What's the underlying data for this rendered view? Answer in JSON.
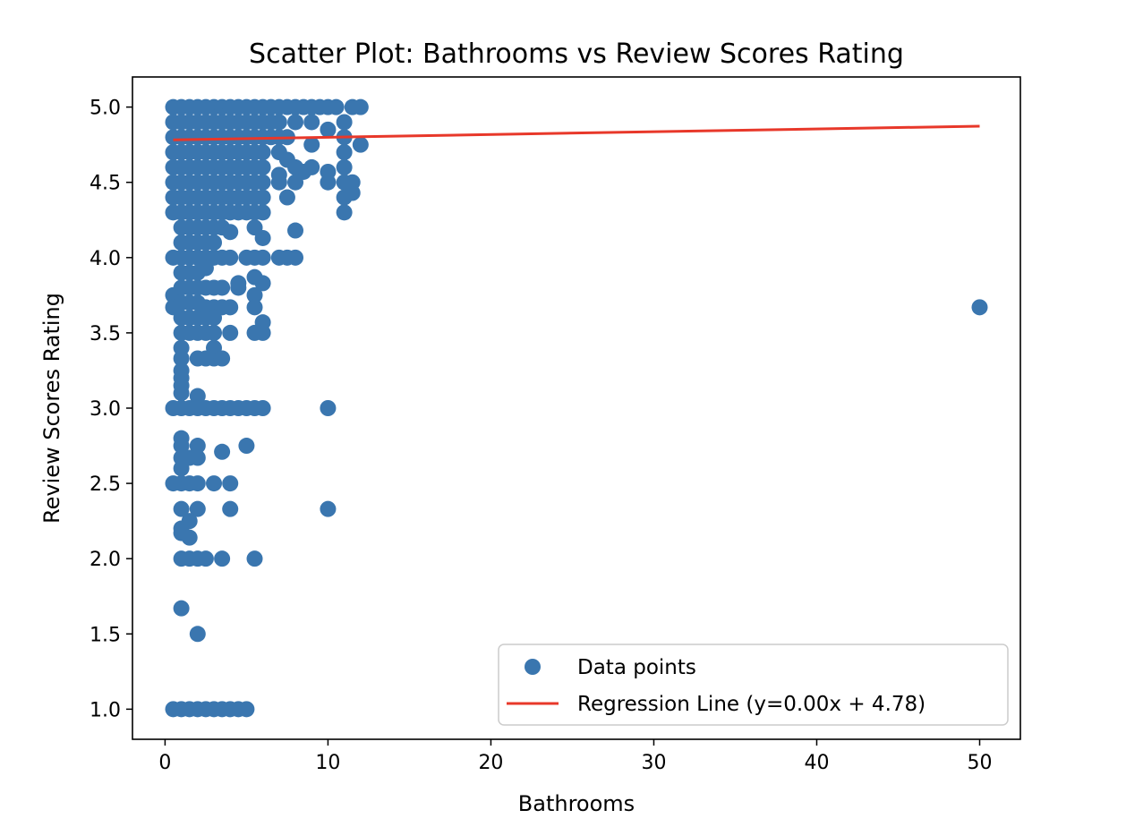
{
  "chart_data": {
    "type": "scatter",
    "title": "Scatter Plot: Bathrooms vs Review Scores Rating",
    "xlabel": "Bathrooms",
    "ylabel": "Review Scores Rating",
    "xlim": [
      -2,
      52.5
    ],
    "ylim": [
      0.8,
      5.2
    ],
    "x_ticks": [
      0,
      10,
      20,
      30,
      40,
      50
    ],
    "x_tick_labels": [
      "0",
      "10",
      "20",
      "30",
      "40",
      "50"
    ],
    "y_ticks": [
      1.0,
      1.5,
      2.0,
      2.5,
      3.0,
      3.5,
      4.0,
      4.5,
      5.0
    ],
    "y_tick_labels": [
      "1.0",
      "1.5",
      "2.0",
      "2.5",
      "3.0",
      "3.5",
      "4.0",
      "4.5",
      "5.0"
    ],
    "grid": false,
    "legend": {
      "placement": "lower-right",
      "entries": [
        "Data points",
        "Regression Line (y=0.00x + 4.78)"
      ]
    },
    "colors": {
      "points": "#3a76af",
      "regression": "#e8382a"
    },
    "series": [
      {
        "name": "Data points",
        "kind": "scatter",
        "points": [
          [
            0.5,
            5.0
          ],
          [
            1,
            5.0
          ],
          [
            1.5,
            5.0
          ],
          [
            2,
            5.0
          ],
          [
            2.5,
            5.0
          ],
          [
            3,
            5.0
          ],
          [
            3.5,
            5.0
          ],
          [
            4,
            5.0
          ],
          [
            4.5,
            5.0
          ],
          [
            5,
            5.0
          ],
          [
            5.5,
            5.0
          ],
          [
            6,
            5.0
          ],
          [
            6.5,
            5.0
          ],
          [
            7,
            5.0
          ],
          [
            7.5,
            5.0
          ],
          [
            8,
            5.0
          ],
          [
            8.5,
            5.0
          ],
          [
            9,
            5.0
          ],
          [
            9.5,
            5.0
          ],
          [
            10,
            5.0
          ],
          [
            10.5,
            5.0
          ],
          [
            11.5,
            5.0
          ],
          [
            12,
            5.0
          ],
          [
            0.5,
            4.9
          ],
          [
            1,
            4.9
          ],
          [
            1.5,
            4.9
          ],
          [
            2,
            4.9
          ],
          [
            2.5,
            4.9
          ],
          [
            3,
            4.9
          ],
          [
            3.5,
            4.9
          ],
          [
            4,
            4.9
          ],
          [
            4.5,
            4.9
          ],
          [
            5,
            4.9
          ],
          [
            5.5,
            4.9
          ],
          [
            6,
            4.9
          ],
          [
            6.5,
            4.9
          ],
          [
            7,
            4.9
          ],
          [
            8,
            4.9
          ],
          [
            9,
            4.9
          ],
          [
            10,
            4.85
          ],
          [
            11,
            4.9
          ],
          [
            0.5,
            4.8
          ],
          [
            1,
            4.8
          ],
          [
            1.5,
            4.8
          ],
          [
            2,
            4.8
          ],
          [
            2.5,
            4.8
          ],
          [
            3,
            4.8
          ],
          [
            3.5,
            4.8
          ],
          [
            4,
            4.8
          ],
          [
            4.5,
            4.8
          ],
          [
            5,
            4.8
          ],
          [
            5.5,
            4.8
          ],
          [
            6,
            4.8
          ],
          [
            6.5,
            4.8
          ],
          [
            7,
            4.8
          ],
          [
            7.5,
            4.8
          ],
          [
            11,
            4.8
          ],
          [
            12,
            4.75
          ],
          [
            0.5,
            4.7
          ],
          [
            1,
            4.7
          ],
          [
            1.5,
            4.7
          ],
          [
            2,
            4.7
          ],
          [
            2.5,
            4.7
          ],
          [
            3,
            4.7
          ],
          [
            3.5,
            4.7
          ],
          [
            4,
            4.7
          ],
          [
            4.5,
            4.7
          ],
          [
            5,
            4.7
          ],
          [
            5.5,
            4.7
          ],
          [
            6,
            4.7
          ],
          [
            7,
            4.7
          ],
          [
            7.5,
            4.65
          ],
          [
            9,
            4.75
          ],
          [
            11,
            4.7
          ],
          [
            0.5,
            4.6
          ],
          [
            1,
            4.6
          ],
          [
            1.5,
            4.6
          ],
          [
            2,
            4.6
          ],
          [
            2.5,
            4.6
          ],
          [
            3,
            4.6
          ],
          [
            3.5,
            4.6
          ],
          [
            4,
            4.6
          ],
          [
            4.5,
            4.6
          ],
          [
            5,
            4.6
          ],
          [
            5.5,
            4.6
          ],
          [
            6,
            4.6
          ],
          [
            7,
            4.55
          ],
          [
            8,
            4.6
          ],
          [
            8.5,
            4.57
          ],
          [
            9,
            4.6
          ],
          [
            10,
            4.57
          ],
          [
            11,
            4.6
          ],
          [
            0.5,
            4.5
          ],
          [
            1,
            4.5
          ],
          [
            1.5,
            4.5
          ],
          [
            2,
            4.5
          ],
          [
            2.5,
            4.5
          ],
          [
            3,
            4.5
          ],
          [
            3.5,
            4.5
          ],
          [
            4,
            4.5
          ],
          [
            4.5,
            4.5
          ],
          [
            5,
            4.5
          ],
          [
            5.5,
            4.5
          ],
          [
            6,
            4.5
          ],
          [
            7,
            4.5
          ],
          [
            8,
            4.5
          ],
          [
            10,
            4.5
          ],
          [
            11,
            4.5
          ],
          [
            11.5,
            4.5
          ],
          [
            0.5,
            4.4
          ],
          [
            1,
            4.4
          ],
          [
            1.5,
            4.4
          ],
          [
            2,
            4.4
          ],
          [
            2.5,
            4.4
          ],
          [
            3,
            4.4
          ],
          [
            3.5,
            4.4
          ],
          [
            4,
            4.4
          ],
          [
            4.5,
            4.4
          ],
          [
            5,
            4.4
          ],
          [
            5.5,
            4.4
          ],
          [
            6,
            4.4
          ],
          [
            7.5,
            4.4
          ],
          [
            11,
            4.4
          ],
          [
            11.5,
            4.43
          ],
          [
            0.5,
            4.3
          ],
          [
            1,
            4.3
          ],
          [
            1.5,
            4.3
          ],
          [
            2,
            4.3
          ],
          [
            2.5,
            4.3
          ],
          [
            3,
            4.3
          ],
          [
            3.5,
            4.3
          ],
          [
            4,
            4.3
          ],
          [
            4.5,
            4.3
          ],
          [
            5,
            4.3
          ],
          [
            5.5,
            4.3
          ],
          [
            6,
            4.3
          ],
          [
            11,
            4.3
          ],
          [
            1,
            4.2
          ],
          [
            1.5,
            4.2
          ],
          [
            2,
            4.2
          ],
          [
            2.5,
            4.2
          ],
          [
            3,
            4.2
          ],
          [
            3.5,
            4.2
          ],
          [
            4,
            4.17
          ],
          [
            5.5,
            4.2
          ],
          [
            6,
            4.13
          ],
          [
            8,
            4.18
          ],
          [
            0.5,
            4.0
          ],
          [
            1,
            4.0
          ],
          [
            1.5,
            4.0
          ],
          [
            2,
            4.0
          ],
          [
            2.5,
            4.0
          ],
          [
            3,
            4.0
          ],
          [
            3.5,
            4.0
          ],
          [
            4,
            4.0
          ],
          [
            5,
            4.0
          ],
          [
            5.5,
            4.0
          ],
          [
            6,
            4.0
          ],
          [
            7,
            4.0
          ],
          [
            7.5,
            4.0
          ],
          [
            8,
            4.0
          ],
          [
            1,
            4.1
          ],
          [
            1.5,
            4.1
          ],
          [
            2,
            4.1
          ],
          [
            2.5,
            4.1
          ],
          [
            3,
            4.1
          ],
          [
            1,
            3.9
          ],
          [
            1.5,
            3.9
          ],
          [
            2,
            3.9
          ],
          [
            2.5,
            3.93
          ],
          [
            4.5,
            3.83
          ],
          [
            5.5,
            3.87
          ],
          [
            6,
            3.83
          ],
          [
            0.5,
            3.75
          ],
          [
            1,
            3.8
          ],
          [
            1.5,
            3.8
          ],
          [
            2,
            3.8
          ],
          [
            2.5,
            3.8
          ],
          [
            3,
            3.8
          ],
          [
            3.5,
            3.8
          ],
          [
            4.5,
            3.8
          ],
          [
            5.5,
            3.75
          ],
          [
            0.5,
            3.67
          ],
          [
            1,
            3.7
          ],
          [
            1.5,
            3.7
          ],
          [
            2,
            3.7
          ],
          [
            2.5,
            3.67
          ],
          [
            3,
            3.67
          ],
          [
            3.5,
            3.67
          ],
          [
            4,
            3.67
          ],
          [
            5.5,
            3.67
          ],
          [
            1,
            3.6
          ],
          [
            1.5,
            3.6
          ],
          [
            2,
            3.6
          ],
          [
            2.5,
            3.6
          ],
          [
            3,
            3.6
          ],
          [
            6,
            3.57
          ],
          [
            1,
            3.5
          ],
          [
            1.5,
            3.5
          ],
          [
            2,
            3.5
          ],
          [
            2.5,
            3.5
          ],
          [
            3,
            3.5
          ],
          [
            4,
            3.5
          ],
          [
            5.5,
            3.5
          ],
          [
            6,
            3.5
          ],
          [
            1,
            3.4
          ],
          [
            3,
            3.4
          ],
          [
            3,
            3.33
          ],
          [
            2,
            3.33
          ],
          [
            2.5,
            3.33
          ],
          [
            3.5,
            3.33
          ],
          [
            1,
            3.33
          ],
          [
            1,
            3.25
          ],
          [
            1,
            3.2
          ],
          [
            1,
            3.15
          ],
          [
            1,
            3.1
          ],
          [
            2,
            3.08
          ],
          [
            0.5,
            3.0
          ],
          [
            1,
            3.0
          ],
          [
            1.5,
            3.0
          ],
          [
            2,
            3.0
          ],
          [
            2.5,
            3.0
          ],
          [
            3,
            3.0
          ],
          [
            3.5,
            3.0
          ],
          [
            4,
            3.0
          ],
          [
            4.5,
            3.0
          ],
          [
            5,
            3.0
          ],
          [
            5.5,
            3.0
          ],
          [
            6,
            3.0
          ],
          [
            10,
            3.0
          ],
          [
            1,
            2.8
          ],
          [
            1,
            2.75
          ],
          [
            2,
            2.75
          ],
          [
            5,
            2.75
          ],
          [
            1,
            2.67
          ],
          [
            1.5,
            2.67
          ],
          [
            2,
            2.67
          ],
          [
            3.5,
            2.71
          ],
          [
            1,
            2.6
          ],
          [
            0.5,
            2.5
          ],
          [
            1,
            2.5
          ],
          [
            1.5,
            2.5
          ],
          [
            2,
            2.5
          ],
          [
            3,
            2.5
          ],
          [
            4,
            2.5
          ],
          [
            1,
            2.33
          ],
          [
            2,
            2.33
          ],
          [
            4,
            2.33
          ],
          [
            10,
            2.33
          ],
          [
            1.5,
            2.25
          ],
          [
            1,
            2.2
          ],
          [
            1,
            2.17
          ],
          [
            1.5,
            2.14
          ],
          [
            1,
            2.0
          ],
          [
            1.5,
            2.0
          ],
          [
            2,
            2.0
          ],
          [
            2.5,
            2.0
          ],
          [
            3.5,
            2.0
          ],
          [
            5.5,
            2.0
          ],
          [
            1,
            1.67
          ],
          [
            2,
            1.5
          ],
          [
            0.5,
            1.0
          ],
          [
            1,
            1.0
          ],
          [
            1.5,
            1.0
          ],
          [
            2,
            1.0
          ],
          [
            2.5,
            1.0
          ],
          [
            3,
            1.0
          ],
          [
            3.5,
            1.0
          ],
          [
            4,
            1.0
          ],
          [
            4.5,
            1.0
          ],
          [
            5,
            1.0
          ],
          [
            50,
            3.67
          ]
        ]
      },
      {
        "name": "Regression Line (y=0.00x + 4.78)",
        "kind": "line",
        "x": [
          0.5,
          50
        ],
        "y": [
          4.782,
          4.873
        ]
      }
    ]
  }
}
